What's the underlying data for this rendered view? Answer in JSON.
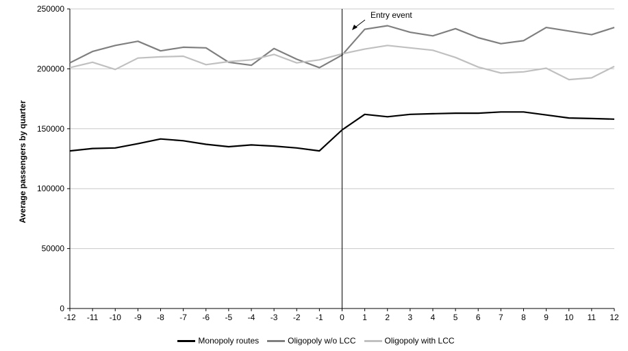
{
  "chart_data": {
    "type": "line",
    "title": "",
    "xlabel": "",
    "ylabel": "Average passengers by quarter",
    "x": [
      -12,
      -11,
      -10,
      -9,
      -8,
      -7,
      -6,
      -5,
      -4,
      -3,
      -2,
      -1,
      0,
      1,
      2,
      3,
      4,
      5,
      6,
      7,
      8,
      9,
      10,
      11,
      12
    ],
    "ylim": [
      0,
      250000
    ],
    "yticks": [
      0,
      50000,
      100000,
      150000,
      200000,
      250000
    ],
    "grid": "horizontal",
    "legend_position": "bottom",
    "series": [
      {
        "name": "Monopoly routes",
        "color": "#000000",
        "values": [
          131500,
          133500,
          134000,
          137500,
          141500,
          140000,
          137000,
          135000,
          136500,
          135500,
          134000,
          131500,
          149000,
          162000,
          160000,
          162000,
          162500,
          163000,
          163000,
          164000,
          164000,
          161500,
          159000,
          158500,
          158000
        ]
      },
      {
        "name": "Oligopoly w/o LCC",
        "color": "#7f7f7f",
        "values": [
          205000,
          214500,
          219500,
          223000,
          215000,
          218000,
          217500,
          205500,
          203000,
          217000,
          208000,
          201000,
          211500,
          233000,
          236000,
          230500,
          227500,
          233500,
          226000,
          221000,
          223500,
          234500,
          231500,
          228500,
          234500
        ]
      },
      {
        "name": "Oligopoly with LCC",
        "color": "#c0c0c0",
        "values": [
          201000,
          205500,
          199500,
          209000,
          210000,
          210500,
          203500,
          206000,
          207500,
          212000,
          205000,
          207500,
          212500,
          216500,
          219500,
          217500,
          215500,
          209500,
          201500,
          196500,
          197500,
          200500,
          191000,
          192500,
          202000
        ]
      }
    ],
    "event_line": {
      "x": 0
    },
    "annotations": [
      {
        "text": "Entry event",
        "x": 1,
        "y": 245000
      }
    ]
  }
}
